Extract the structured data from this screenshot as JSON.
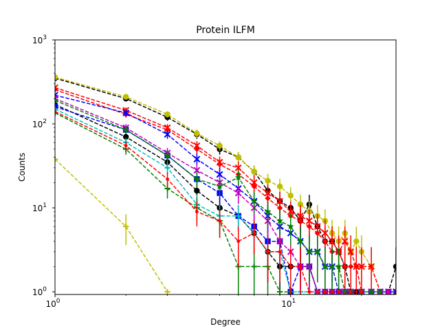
{
  "chart_data": {
    "type": "line",
    "title": "Protein ILFM",
    "xlabel": "Degree",
    "ylabel": "Counts",
    "x_scale": "log",
    "y_scale": "log",
    "xlim": [
      1,
      28
    ],
    "ylim": [
      0.93,
      1000
    ],
    "x_ticks": [
      {
        "value": 1,
        "base": "10",
        "exp": "0"
      },
      {
        "value": 10,
        "base": "10",
        "exp": "1"
      }
    ],
    "y_ticks": [
      {
        "value": 1,
        "base": "10",
        "exp": "0"
      },
      {
        "value": 10,
        "base": "10",
        "exp": "1"
      },
      {
        "value": 100,
        "base": "10",
        "exp": "2"
      },
      {
        "value": 1000,
        "base": "10",
        "exp": "3"
      }
    ],
    "grid": false,
    "legend": "none",
    "series": [
      {
        "color": "#000000",
        "marker": "circle",
        "x": [
          1,
          2,
          3,
          4,
          5,
          6,
          7,
          8,
          9,
          10,
          11,
          12,
          13,
          14,
          15,
          16,
          17,
          18,
          19,
          20,
          22,
          24,
          26,
          28
        ],
        "y": [
          350,
          200,
          120,
          75,
          50,
          40,
          27,
          16,
          12,
          10,
          7,
          11,
          6,
          4,
          4,
          3,
          2,
          1,
          1,
          1,
          1,
          1,
          1,
          1
        ],
        "err": [
          19,
          14,
          11,
          9,
          7,
          6,
          5,
          4,
          3.5,
          3,
          2.6,
          3.3,
          2.4,
          2,
          2,
          1.7,
          1.4,
          0,
          0,
          0,
          0,
          0,
          0,
          0
        ]
      },
      {
        "color": "#bfbf00",
        "marker": "circle",
        "x": [
          1,
          2,
          3,
          4,
          5,
          6,
          7,
          8,
          9,
          10,
          11,
          12,
          13,
          14,
          15,
          16,
          17,
          18,
          19,
          20,
          22,
          24,
          26,
          28
        ],
        "y": [
          360,
          210,
          130,
          77,
          55,
          40,
          27,
          21,
          18,
          14,
          11,
          9,
          8,
          7,
          5,
          4,
          5,
          3,
          4,
          3,
          2,
          1,
          1,
          1
        ],
        "err": [
          19,
          14,
          11,
          9,
          7,
          6,
          5,
          4.5,
          4.2,
          3.7,
          3.3,
          3,
          2.8,
          2.6,
          2.2,
          2,
          2.2,
          1.7,
          2,
          1.7,
          1.4,
          0,
          0,
          0
        ]
      },
      {
        "color": "#000000",
        "marker": "circle",
        "x": [
          1,
          2,
          3,
          4,
          5,
          6,
          7,
          8,
          9,
          10,
          11,
          12,
          13,
          14,
          15,
          16,
          17,
          18,
          20,
          22,
          24,
          26,
          28
        ],
        "y": [
          170,
          70,
          35,
          16,
          10,
          8,
          5,
          3,
          2,
          2,
          2,
          2,
          1,
          1,
          1,
          1,
          1,
          1,
          1,
          1,
          1,
          1,
          2
        ],
        "err": [
          13,
          8,
          6,
          4,
          3.2,
          2.8,
          2.2,
          1.7,
          1.4,
          1.4,
          1.4,
          1.4,
          0,
          0,
          0,
          0,
          0,
          0,
          0,
          0,
          0,
          0,
          1.4
        ]
      },
      {
        "color": "#0000ff",
        "marker": "square",
        "x": [
          1,
          2,
          3,
          4,
          5,
          6,
          7,
          8,
          9,
          10,
          11,
          12,
          13,
          14,
          15,
          16,
          17,
          18,
          20,
          22,
          24,
          26
        ],
        "y": [
          160,
          85,
          42,
          22,
          15,
          8,
          6,
          4,
          4,
          1,
          2,
          2,
          1,
          1,
          1,
          1,
          1,
          1,
          1,
          1,
          1,
          1
        ],
        "err": [
          12.6,
          9.2,
          6.5,
          4.7,
          3.9,
          2.8,
          2.4,
          2,
          2,
          0,
          1.4,
          1.4,
          0,
          0,
          0,
          0,
          0,
          0,
          0,
          0,
          0,
          0
        ]
      },
      {
        "color": "#ff0000",
        "marker": "x",
        "x": [
          1,
          2,
          3,
          4,
          5,
          6,
          7,
          8,
          9,
          10,
          11,
          12,
          13,
          14,
          15,
          16,
          17,
          18,
          19,
          20,
          22,
          24,
          26,
          28
        ],
        "y": [
          270,
          145,
          90,
          55,
          35,
          30,
          20,
          15,
          12,
          9,
          8,
          7,
          6,
          5,
          4,
          3,
          4,
          3,
          2,
          2,
          2,
          1,
          1,
          1
        ],
        "err": [
          16,
          12,
          9.5,
          7.4,
          5.9,
          5.5,
          4.5,
          3.9,
          3.5,
          3,
          2.8,
          2.6,
          2.4,
          2.2,
          2,
          1.7,
          2,
          1.7,
          1.4,
          1.4,
          1.4,
          0,
          0,
          0
        ]
      },
      {
        "color": "#ff0000",
        "marker": "diamond",
        "x": [
          1,
          2,
          3,
          4,
          5,
          6,
          7,
          8,
          9,
          10,
          11,
          12,
          13,
          14,
          15,
          16,
          17,
          18,
          19,
          20,
          22,
          24,
          26,
          28
        ],
        "y": [
          255,
          130,
          85,
          50,
          33,
          25,
          18,
          13,
          10,
          8,
          7,
          6,
          5,
          4,
          3,
          3,
          2,
          2,
          2,
          1,
          1,
          1,
          1,
          1
        ],
        "err": [
          16,
          11.4,
          9.2,
          7,
          5.7,
          5,
          4.2,
          3.6,
          3.2,
          2.8,
          2.6,
          2.4,
          2.2,
          2,
          1.7,
          1.7,
          1.4,
          1.4,
          1.4,
          0,
          0,
          0,
          0,
          0
        ]
      },
      {
        "color": "#0000ff",
        "marker": "x",
        "x": [
          1,
          2,
          3,
          4,
          5,
          6,
          7,
          8,
          9,
          10,
          11,
          12,
          13,
          14,
          15,
          16,
          17,
          18,
          20,
          22,
          24,
          26,
          28
        ],
        "y": [
          220,
          135,
          75,
          38,
          25,
          17,
          12,
          8,
          6,
          5,
          4,
          3,
          3,
          2,
          2,
          1,
          1,
          1,
          1,
          1,
          1,
          1,
          1
        ],
        "err": [
          14.8,
          11.6,
          8.7,
          6.2,
          5,
          4.1,
          3.5,
          2.8,
          2.4,
          2.2,
          2,
          1.7,
          1.7,
          1.4,
          1.4,
          0,
          0,
          0,
          0,
          0,
          0,
          0,
          0
        ]
      },
      {
        "color": "#bf00bf",
        "marker": "x",
        "x": [
          1,
          2,
          3,
          4,
          5,
          6,
          7,
          8,
          9,
          10,
          11,
          12,
          13,
          14,
          15,
          16,
          17,
          18,
          20,
          22,
          24,
          26
        ],
        "y": [
          200,
          90,
          45,
          28,
          20,
          15,
          10,
          7,
          4,
          3,
          2,
          2,
          1,
          1,
          1,
          1,
          1,
          1,
          1,
          1,
          1,
          1
        ],
        "err": [
          14,
          9.5,
          6.7,
          5.3,
          4.5,
          3.9,
          3.2,
          2.6,
          2,
          1.7,
          1.4,
          1.4,
          0,
          0,
          0,
          0,
          0,
          0,
          0,
          0,
          0,
          0
        ]
      },
      {
        "color": "#008000",
        "marker": "star",
        "x": [
          1,
          2,
          3,
          4,
          5,
          6,
          7,
          8,
          9,
          10,
          11,
          12,
          13,
          14,
          15,
          16,
          17,
          18,
          20,
          22,
          24
        ],
        "y": [
          190,
          85,
          42,
          22,
          18,
          23,
          12,
          9,
          7,
          6,
          4,
          3,
          3,
          2,
          2,
          2,
          1,
          1,
          1,
          1,
          1
        ],
        "err": [
          13.8,
          9.2,
          6.5,
          4.7,
          4.2,
          4.8,
          3.5,
          3,
          2.6,
          2.4,
          2,
          1.7,
          1.7,
          1.4,
          1.4,
          1.4,
          0,
          0,
          0,
          0,
          0
        ]
      },
      {
        "color": "#00bfbf",
        "marker": "plus",
        "x": [
          1,
          2,
          3,
          4,
          5,
          6,
          7,
          8,
          9,
          10,
          11,
          12,
          13
        ],
        "y": [
          150,
          60,
          30,
          11,
          8,
          8,
          5,
          3,
          3,
          1,
          1,
          1,
          1
        ],
        "err": [
          12.2,
          7.7,
          5.5,
          3.3,
          2.8,
          2.8,
          2.2,
          1.7,
          1.7,
          0,
          0,
          0,
          0
        ]
      },
      {
        "color": "#008000",
        "marker": "plus",
        "x": [
          1,
          2,
          3,
          4,
          5,
          6,
          7,
          8,
          9,
          10
        ],
        "y": [
          135,
          50,
          17,
          10,
          7,
          2,
          2,
          2,
          1,
          1
        ],
        "err": [
          11.6,
          7,
          4.1,
          3.2,
          2.6,
          1.4,
          1.4,
          1.4,
          0,
          0
        ]
      },
      {
        "color": "#ff0000",
        "marker": "dot",
        "x": [
          1,
          2,
          3,
          4,
          5,
          6,
          7,
          8,
          9,
          10,
          11,
          12,
          13,
          14,
          15,
          16,
          18,
          20
        ],
        "y": [
          140,
          55,
          22,
          9,
          7,
          4,
          5,
          3,
          3,
          2,
          2,
          1,
          1,
          1,
          1,
          1,
          1,
          1
        ],
        "err": [
          11.8,
          7.4,
          4.7,
          3,
          2.6,
          2,
          2.2,
          1.7,
          1.7,
          1.4,
          1.4,
          0,
          0,
          0,
          0,
          0,
          0,
          0
        ]
      },
      {
        "color": "#bfbf00",
        "marker": "plus",
        "x": [
          1,
          2,
          3
        ],
        "y": [
          38,
          6,
          1
        ],
        "err": [
          0,
          2.4,
          0
        ]
      }
    ]
  }
}
